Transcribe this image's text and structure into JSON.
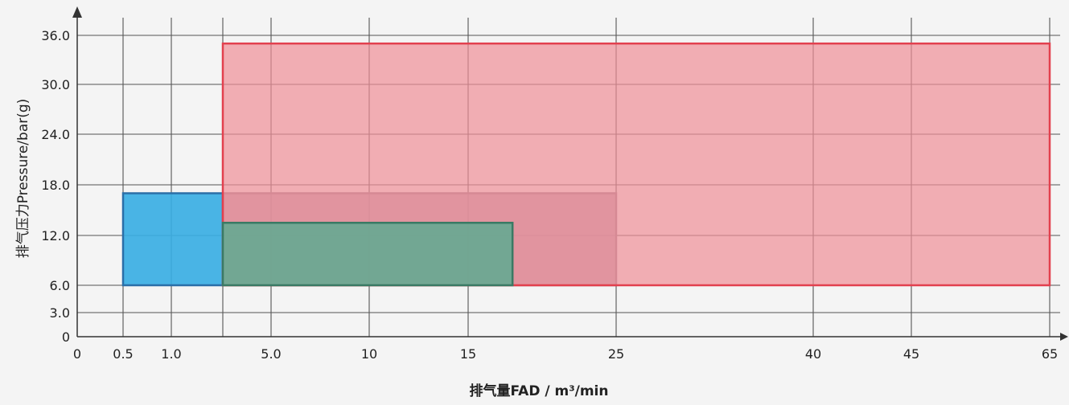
{
  "chart_data": {
    "type": "area",
    "xlabel": "排气量FAD / m³/min",
    "ylabel": "排气压力Pressure/bar(g)",
    "x_ticks": [
      {
        "value": 0,
        "label": "0"
      },
      {
        "value": 0.5,
        "label": "0.5"
      },
      {
        "value": 1.0,
        "label": "1.0"
      },
      {
        "value": 5.0,
        "label": "5.0"
      },
      {
        "value": 10,
        "label": "10"
      },
      {
        "value": 15,
        "label": "15"
      },
      {
        "value": 25,
        "label": "25"
      },
      {
        "value": 40,
        "label": "40"
      },
      {
        "value": 45,
        "label": "45"
      },
      {
        "value": 65,
        "label": "65"
      }
    ],
    "y_ticks": [
      {
        "value": 0,
        "label": "0"
      },
      {
        "value": 3.0,
        "label": "3.0"
      },
      {
        "value": 6.0,
        "label": "6.0"
      },
      {
        "value": 12.0,
        "label": "12.0"
      },
      {
        "value": 18.0,
        "label": "18.0"
      },
      {
        "value": 24.0,
        "label": "24.0"
      },
      {
        "value": 30.0,
        "label": "30.0"
      },
      {
        "value": 36.0,
        "label": "36.0"
      }
    ],
    "x_grid_values": [
      0.5,
      1.0,
      2.5,
      5.0,
      10,
      15,
      25,
      40,
      45,
      65
    ],
    "grid": true,
    "series": [
      {
        "x_range": [
          0.5,
          2.5
        ],
        "y_range": [
          6,
          17
        ],
        "color": "#3aaee3",
        "border": "#2a6fa8",
        "opacity": 0.92
      },
      {
        "x_range": [
          2.5,
          25
        ],
        "y_range": [
          6,
          17
        ],
        "color": "#b493a6",
        "border": "#9a7e8e",
        "opacity": 0.85
      },
      {
        "x_range": [
          2.5,
          65
        ],
        "y_range": [
          6,
          35
        ],
        "color": "#f08f97",
        "border": "#e2404e",
        "opacity": 0.7
      },
      {
        "x_range": [
          2.5,
          18
        ],
        "y_range": [
          6,
          13.5
        ],
        "color": "#5eaa90",
        "border": "#3a7a64",
        "opacity": 0.85
      }
    ]
  }
}
